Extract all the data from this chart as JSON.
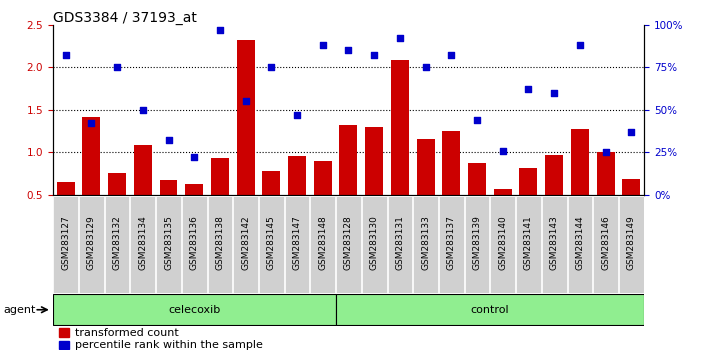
{
  "title": "GDS3384 / 37193_at",
  "categories": [
    "GSM283127",
    "GSM283129",
    "GSM283132",
    "GSM283134",
    "GSM283135",
    "GSM283136",
    "GSM283138",
    "GSM283142",
    "GSM283145",
    "GSM283147",
    "GSM283148",
    "GSM283128",
    "GSM283130",
    "GSM283131",
    "GSM283133",
    "GSM283137",
    "GSM283139",
    "GSM283140",
    "GSM283141",
    "GSM283143",
    "GSM283144",
    "GSM283146",
    "GSM283149"
  ],
  "bar_values": [
    0.65,
    1.42,
    0.75,
    1.08,
    0.67,
    0.63,
    0.93,
    2.32,
    0.78,
    0.95,
    0.9,
    1.32,
    1.3,
    2.09,
    1.15,
    1.25,
    0.87,
    0.57,
    0.82,
    0.97,
    1.27,
    1.0,
    0.68
  ],
  "dot_values_pct": [
    82,
    42,
    75,
    50,
    32,
    22,
    97,
    55,
    75,
    47,
    88,
    85,
    82,
    92,
    75,
    82,
    44,
    26,
    62,
    60,
    88,
    25,
    37
  ],
  "celecoxib_count": 11,
  "control_count": 12,
  "bar_color": "#cc0000",
  "dot_color": "#0000cc",
  "ylim_left": [
    0.5,
    2.5
  ],
  "ylim_right": [
    0,
    100
  ],
  "yticks_left": [
    0.5,
    1.0,
    1.5,
    2.0,
    2.5
  ],
  "yticks_right": [
    0,
    25,
    50,
    75,
    100
  ],
  "ytick_labels_right": [
    "0%",
    "25%",
    "50%",
    "75%",
    "100%"
  ],
  "agent_label": "agent",
  "celecoxib_label": "celecoxib",
  "control_label": "control",
  "legend_bar_label": "transformed count",
  "legend_dot_label": "percentile rank within the sample",
  "bg_plot": "#ffffff",
  "bg_xticklabel": "#d0d0d0",
  "bg_group": "#90EE90",
  "title_fontsize": 10,
  "tick_fontsize": 6.5,
  "group_fontsize": 8,
  "legend_fontsize": 8
}
